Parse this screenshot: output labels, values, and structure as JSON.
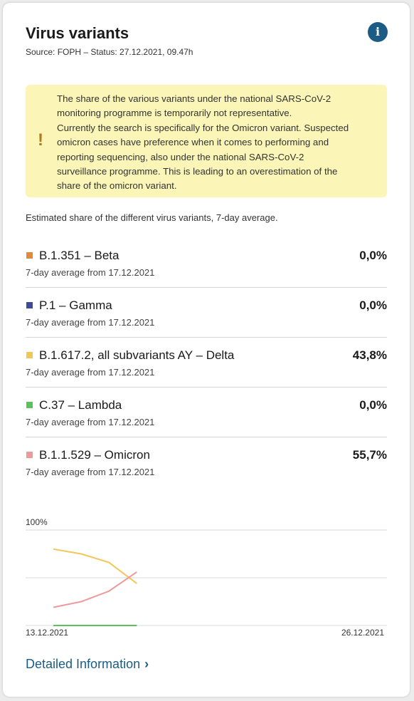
{
  "card": {
    "title": "Virus variants",
    "source": "Source: FOPH – Status: 27.12.2021, 09.47h",
    "info_icon_glyph": "i"
  },
  "notice": {
    "icon_glyph": "!",
    "lines": [
      "The share of the various variants under the national SARS-CoV-2",
      "monitoring programme is temporarily not representative.",
      "Currently the search is specifically for the Omicron variant. Suspected",
      "omicron cases have preference when it comes to performing and",
      "reporting sequencing, also under the national SARS-CoV-2",
      "surveillance programme. This is leading to an overestimation of the",
      "share of the omicron variant."
    ]
  },
  "subtitle": "Estimated share of the different virus variants, 7-day average.",
  "variants": [
    {
      "name": "B.1.351 – Beta",
      "date": "7-day average from 17.12.2021",
      "share": "0,0%",
      "color": "#e08a3a"
    },
    {
      "name": "P.1 – Gamma",
      "date": "7-day average from 17.12.2021",
      "share": "0,0%",
      "color": "#3d4b9a"
    },
    {
      "name": "B.1.617.2, all subvariants AY – Delta",
      "date": "7-day average from 17.12.2021",
      "share": "43,8%",
      "color": "#f2c75a"
    },
    {
      "name": "C.37 – Lambda",
      "date": "7-day average from 17.12.2021",
      "share": "0,0%",
      "color": "#5cc05c"
    },
    {
      "name": "B.1.1.529 – Omicron",
      "date": "7-day average from 17.12.2021",
      "share": "55,7%",
      "color": "#ec9a9a"
    }
  ],
  "chart_data": {
    "type": "line",
    "y_label": "100%",
    "x_start_label": "13.12.2021",
    "x_end_label": "26.12.2021",
    "ylim": [
      0,
      100
    ],
    "x_days": [
      "13.12.2021",
      "26.12.2021"
    ],
    "series": [
      {
        "name": "B.1.617.2, all subvariants AY – Delta",
        "color": "#f2c75a",
        "x": [
          "14.12.2021",
          "15.12.2021",
          "16.12.2021",
          "17.12.2021"
        ],
        "values": [
          80,
          75,
          66,
          44
        ]
      },
      {
        "name": "B.1.1.529 – Omicron",
        "color": "#ec9a9a",
        "x": [
          "14.12.2021",
          "15.12.2021",
          "16.12.2021",
          "17.12.2021"
        ],
        "values": [
          19,
          25,
          36,
          56
        ]
      },
      {
        "name": "C.37 – Lambda",
        "color": "#5cc05c",
        "x": [
          "14.12.2021",
          "15.12.2021",
          "16.12.2021",
          "17.12.2021"
        ],
        "values": [
          0,
          0,
          0,
          0
        ]
      }
    ],
    "grid": true
  },
  "link": {
    "label": "Detailed Information",
    "chevron_icon": "chevron-right-icon",
    "chevron_glyph": "›"
  }
}
